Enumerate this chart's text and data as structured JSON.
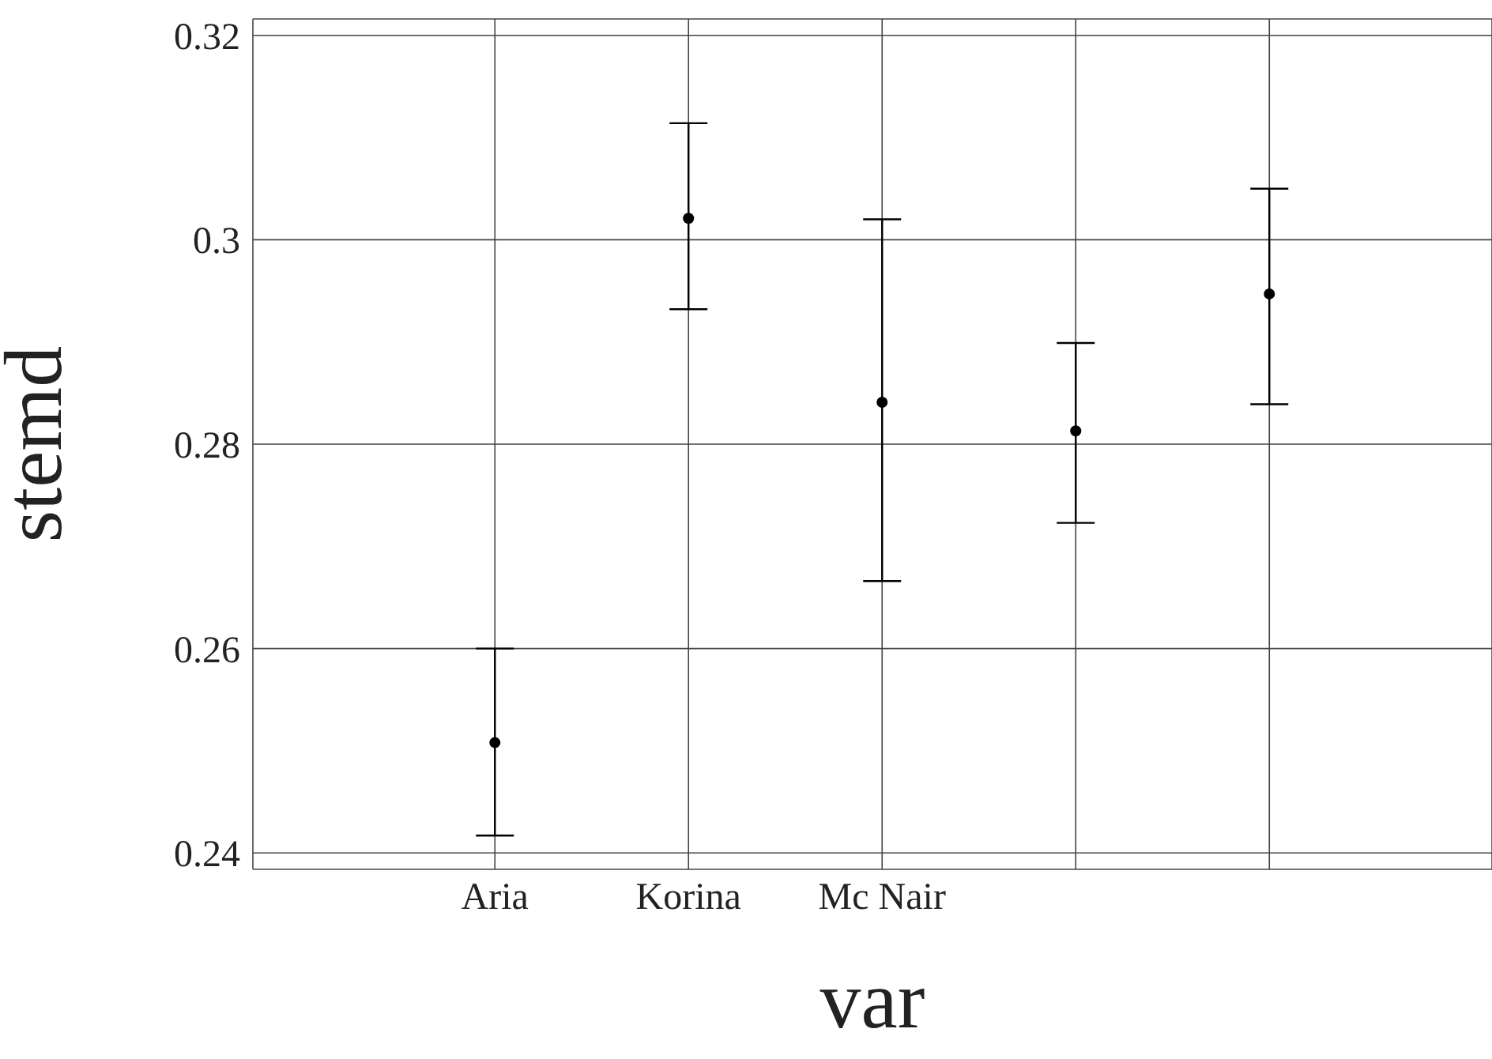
{
  "chart_data": {
    "type": "scatter",
    "xlabel": "var",
    "ylabel": "stemd",
    "categories": [
      "Aria",
      "Korina",
      "Mc Nair",
      null,
      null
    ],
    "values": [
      0.2508,
      0.3021,
      0.2841,
      0.2813,
      0.2947
    ],
    "errors": [
      [
        0.2417,
        0.26
      ],
      [
        0.2932,
        0.3114
      ],
      [
        0.2666,
        0.302
      ],
      [
        0.2723,
        0.2899
      ],
      [
        0.2839,
        0.305
      ]
    ],
    "color": "#000000",
    "marker": "circle",
    "ylim": [
      0.2384,
      0.3216
    ],
    "yticks": [
      0.24,
      0.26,
      0.28,
      0.3,
      0.32
    ],
    "grid": true
  }
}
